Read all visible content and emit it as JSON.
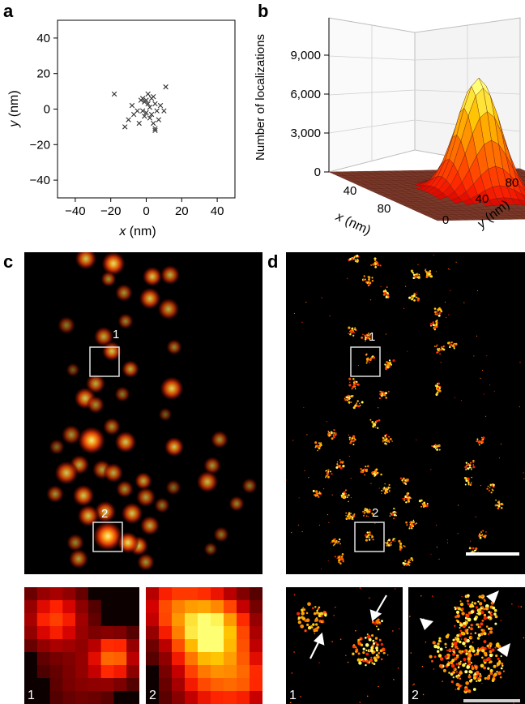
{
  "figure": {
    "panel_labels": {
      "a": "a",
      "b": "b",
      "c": "c",
      "d": "d"
    },
    "roi_labels": {
      "one": "1",
      "two": "2"
    },
    "inset_labels": [
      "1",
      "2",
      "1",
      "2"
    ]
  },
  "chart_data": [
    {
      "type": "scatter",
      "panel": "a",
      "xlabel_var": "x",
      "xlabel_unit": " (nm)",
      "ylabel_var": "y",
      "ylabel_unit": " (nm)",
      "xlim": [
        -50,
        50
      ],
      "ylim": [
        -50,
        50
      ],
      "x_ticks": [
        -40,
        -20,
        0,
        20,
        40
      ],
      "x_tick_labels": [
        "−40",
        "−20",
        "0",
        "20",
        "40"
      ],
      "y_ticks": [
        40,
        20,
        0,
        -20,
        -40
      ],
      "y_tick_labels": [
        "40",
        "20",
        "0",
        "−20",
        "−40"
      ],
      "marker": "x",
      "grid": false,
      "points": [
        [
          -18,
          8.5
        ],
        [
          11,
          12.5
        ],
        [
          -8,
          2
        ],
        [
          -5,
          -1
        ],
        [
          -3,
          5
        ],
        [
          -2,
          6
        ],
        [
          -1,
          4
        ],
        [
          1,
          8.5
        ],
        [
          2,
          1
        ],
        [
          3,
          6
        ],
        [
          4,
          7
        ],
        [
          5,
          3
        ],
        [
          6,
          -1
        ],
        [
          8,
          2
        ],
        [
          10,
          -1
        ],
        [
          -12,
          -10
        ],
        [
          -10,
          -6
        ],
        [
          -7,
          -3
        ],
        [
          -4,
          -8
        ],
        [
          -1,
          -4
        ],
        [
          0,
          -2
        ],
        [
          2,
          -5
        ],
        [
          3,
          -3
        ],
        [
          4,
          -8
        ],
        [
          5,
          -11
        ],
        [
          5,
          -12
        ],
        [
          7,
          -6
        ],
        [
          -2,
          -1
        ],
        [
          1,
          3
        ],
        [
          0,
          5
        ]
      ]
    },
    {
      "type": "surface",
      "panel": "b",
      "zlabel": "Number of localizations",
      "xlabel_var": "x",
      "xlabel_unit": " (nm)",
      "ylabel_var": "y",
      "ylabel_unit": " (nm)",
      "z_ticks": [
        0,
        3000,
        6000,
        9000
      ],
      "z_tick_labels": [
        "0",
        "3,000",
        "6,000",
        "9,000"
      ],
      "x_tick_labels": [
        "40",
        "80"
      ],
      "y_tick_labels": [
        "0",
        "40",
        "80"
      ],
      "peak_value": 9000,
      "peak_sigma_nm": 10,
      "grid_extent_nm": [
        0,
        100
      ]
    }
  ]
}
